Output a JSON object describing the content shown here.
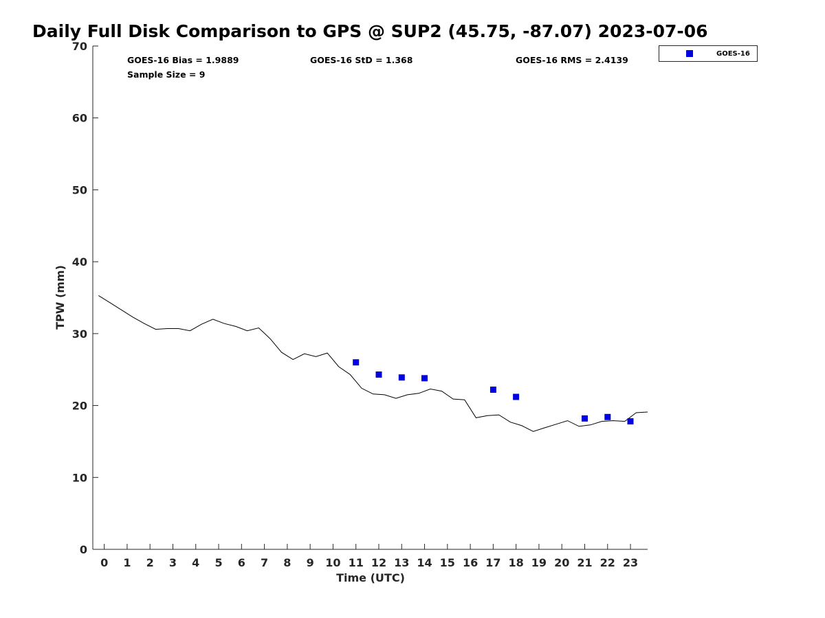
{
  "chart_data": {
    "type": "scatter",
    "title": "Daily Full Disk Comparison to GPS @ SUP2 (45.75, -87.07) 2023-07-06",
    "xlabel": "Time (UTC)",
    "ylabel": "TPW (mm)",
    "xlim": [
      -0.5,
      23.75
    ],
    "ylim": [
      0,
      70
    ],
    "x_ticks": [
      0,
      1,
      2,
      3,
      4,
      5,
      6,
      7,
      8,
      9,
      10,
      11,
      12,
      13,
      14,
      15,
      16,
      17,
      18,
      19,
      20,
      21,
      22,
      23
    ],
    "y_ticks": [
      0,
      10,
      20,
      30,
      40,
      50,
      60,
      70
    ],
    "grid": false,
    "legend_position": "top-right",
    "stats": {
      "bias": "GOES-16 Bias = 1.9889",
      "std": "GOES-16 StD = 1.368",
      "rms": "GOES-16 RMS = 2.4139",
      "sample_size": "Sample Size = 9"
    },
    "series": [
      {
        "name": "GOES-16",
        "style": "marker",
        "color": "#0000e0",
        "x": [
          11,
          12,
          13,
          14,
          17,
          18,
          21,
          22,
          23
        ],
        "y": [
          26.0,
          24.3,
          23.9,
          23.8,
          22.2,
          21.2,
          18.2,
          18.4,
          17.8
        ]
      },
      {
        "style": "line",
        "color": "#000000",
        "x": [
          -0.25,
          0.25,
          0.75,
          1.25,
          1.75,
          2.25,
          2.75,
          3.25,
          3.75,
          4.25,
          4.75,
          5.25,
          5.75,
          6.25,
          6.75,
          7.25,
          7.75,
          8.25,
          8.75,
          9.25,
          9.75,
          10.25,
          10.75,
          11.25,
          11.75,
          12.25,
          12.75,
          13.25,
          13.75,
          14.25,
          14.75,
          15.25,
          15.75,
          16.25,
          16.75,
          17.25,
          17.75,
          18.25,
          18.75,
          19.25,
          19.75,
          20.25,
          20.75,
          21.25,
          21.75,
          22.25,
          22.75,
          23.25,
          23.75
        ],
        "y": [
          35.3,
          34.3,
          33.3,
          32.3,
          31.4,
          30.6,
          30.7,
          30.7,
          30.4,
          31.3,
          32.0,
          31.4,
          31.0,
          30.4,
          30.8,
          29.3,
          27.4,
          26.4,
          27.2,
          26.8,
          27.3,
          25.4,
          24.3,
          22.4,
          21.6,
          21.5,
          21.0,
          21.5,
          21.7,
          22.3,
          22.0,
          20.9,
          20.8,
          18.3,
          18.6,
          18.7,
          17.7,
          17.2,
          16.4,
          16.9,
          17.4,
          17.9,
          17.1,
          17.3,
          17.8,
          17.9,
          17.8,
          19.0,
          19.1
        ]
      }
    ]
  }
}
